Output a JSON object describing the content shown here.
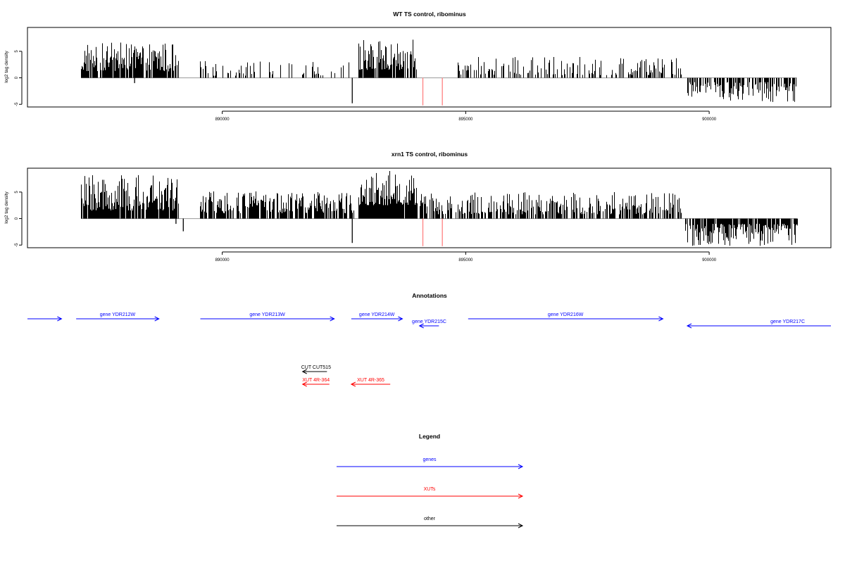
{
  "chart_data": [
    {
      "type": "bar",
      "title": "WT TS control, ribominus",
      "ylabel": "log2 tag density",
      "xlim": [
        886000,
        902500
      ],
      "ylim": [
        -5.5,
        9.5
      ],
      "xticks": [
        890000,
        895000,
        900000
      ],
      "xtick_labels": [
        "890000",
        "895000",
        "900000"
      ],
      "yticks": [
        -5,
        0,
        5
      ],
      "ytick_labels": [
        "-5",
        "0",
        "5"
      ],
      "baseline_color": "#999999",
      "segments": [
        {
          "from": 887100,
          "to": 889100,
          "min": 1.2,
          "max": 6.8,
          "density": 0.85,
          "sign": 1
        },
        {
          "from": 889500,
          "to": 892700,
          "min": 0.4,
          "max": 3.3,
          "density": 0.22,
          "sign": 1
        },
        {
          "from": 892800,
          "to": 894000,
          "min": 1.5,
          "max": 7.2,
          "density": 0.9,
          "sign": 1
        },
        {
          "from": 894800,
          "to": 899450,
          "min": 0.5,
          "max": 4.0,
          "density": 0.35,
          "sign": 1
        },
        {
          "from": 899550,
          "to": 901800,
          "min": 0.8,
          "max": 4.6,
          "density": 0.55,
          "sign": -1
        }
      ],
      "extra_bars": [
        {
          "x": 892670,
          "y": -4.8,
          "color": "#000000"
        },
        {
          "x": 888200,
          "y": -1.0,
          "color": "#000000"
        },
        {
          "x": 894120,
          "y": -5.2,
          "color": "#ff8080"
        },
        {
          "x": 894520,
          "y": -5.2,
          "color": "#ff8080"
        }
      ]
    },
    {
      "type": "bar",
      "title": "xrn1 TS control, ribominus",
      "ylabel": "log2 tag density",
      "xlim": [
        886000,
        902500
      ],
      "ylim": [
        -5.5,
        9.5
      ],
      "xticks": [
        890000,
        895000,
        900000
      ],
      "xtick_labels": [
        "890000",
        "895000",
        "900000"
      ],
      "yticks": [
        -5,
        0,
        5
      ],
      "ytick_labels": [
        "-5",
        "0",
        "5"
      ],
      "baseline_color": "#999999",
      "segments": [
        {
          "from": 887100,
          "to": 889100,
          "min": 1.5,
          "max": 8.2,
          "density": 0.9,
          "sign": 1
        },
        {
          "from": 889500,
          "to": 892700,
          "min": 1.0,
          "max": 5.2,
          "density": 0.7,
          "sign": 1
        },
        {
          "from": 892800,
          "to": 894000,
          "min": 2.5,
          "max": 9.0,
          "density": 0.97,
          "sign": 1
        },
        {
          "from": 894050,
          "to": 899450,
          "min": 0.8,
          "max": 5.0,
          "density": 0.6,
          "sign": 1
        },
        {
          "from": 899500,
          "to": 901800,
          "min": 1.0,
          "max": 5.3,
          "density": 0.8,
          "sign": -1
        }
      ],
      "extra_bars": [
        {
          "x": 892670,
          "y": -4.6,
          "color": "#000000"
        },
        {
          "x": 889200,
          "y": -2.4,
          "color": "#000000"
        },
        {
          "x": 889050,
          "y": -1.0,
          "color": "#000000"
        },
        {
          "x": 894120,
          "y": -5.2,
          "color": "#ff8080"
        },
        {
          "x": 894520,
          "y": -5.2,
          "color": "#ff8080"
        }
      ]
    }
  ],
  "annotations": {
    "title": "Annotations",
    "features": [
      {
        "label": "",
        "start": 886000,
        "end": 886700,
        "dir": 1,
        "row": 0,
        "color": "#0000ff"
      },
      {
        "label": "gene YDR212W",
        "start": 887000,
        "end": 888700,
        "dir": 1,
        "row": 0,
        "color": "#0000ff"
      },
      {
        "label": "gene YDR213W",
        "start": 889550,
        "end": 892300,
        "dir": 1,
        "row": 0,
        "color": "#0000ff"
      },
      {
        "label": "gene YDR214W",
        "start": 892650,
        "end": 893700,
        "dir": 1,
        "row": 0,
        "color": "#0000ff"
      },
      {
        "label": "gene YDR215C",
        "start": 894050,
        "end": 894450,
        "dir": -1,
        "row": 1,
        "color": "#0000ff"
      },
      {
        "label": "gene YDR216W",
        "start": 895050,
        "end": 899050,
        "dir": 1,
        "row": 0,
        "color": "#0000ff"
      },
      {
        "label": "gene YDR217C",
        "start": 899550,
        "end": 902500,
        "dir": -1,
        "row": 1,
        "color": "#0000ff"
      },
      {
        "label": "CUT CUT515",
        "start": 891650,
        "end": 892150,
        "dir": -1,
        "row": 2,
        "color": "#000000"
      },
      {
        "label": "XUT 4R-364",
        "start": 891650,
        "end": 892200,
        "dir": -1,
        "row": 3,
        "color": "#ff0000"
      },
      {
        "label": "XUT 4R-365",
        "start": 892650,
        "end": 893450,
        "dir": -1,
        "row": 3,
        "color": "#ff0000"
      }
    ]
  },
  "legend": {
    "title": "Legend",
    "items": [
      {
        "label": "genes",
        "color": "#0000ff"
      },
      {
        "label": "XUTs",
        "color": "#ff0000"
      },
      {
        "label": "other",
        "color": "#000000"
      }
    ]
  }
}
